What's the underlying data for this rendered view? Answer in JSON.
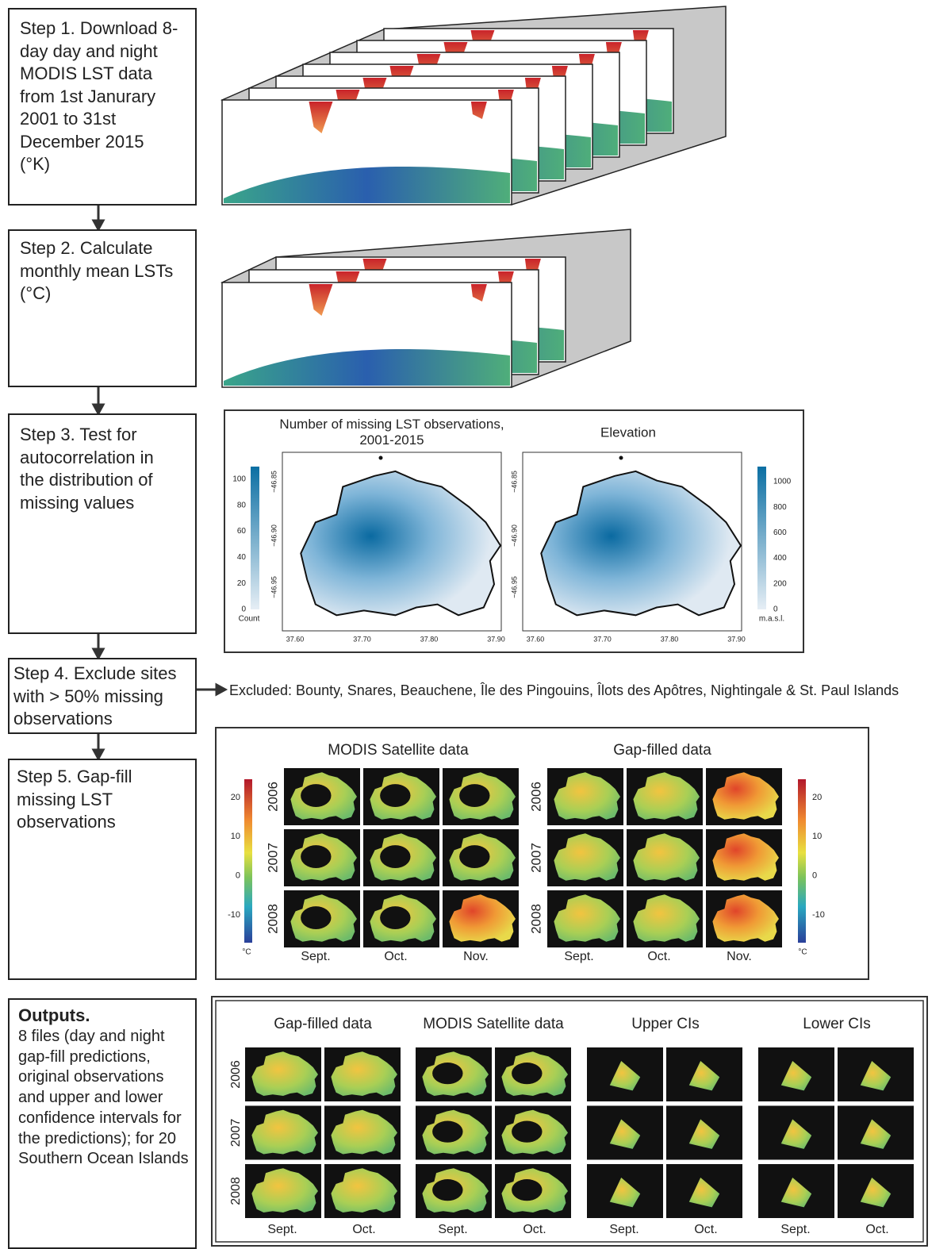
{
  "steps": [
    "Step 1. Download 8-day day and night MODIS LST data from 1st Janurary 2001 to 31st December 2015 (°K)",
    "Step 2. Calculate monthly mean LSTs (°C)",
    "Step 3. Test for autocorrelation in the distribution of missing values",
    "Step 4. Exclude sites with > 50% missing observations",
    "Step 5. Gap-fill missing LST observations"
  ],
  "step4_note": "Excluded: Bounty, Snares, Beauchene, Île des Pingouins, Îlots des Apôtres, Nightingale & St. Paul Islands",
  "outputs": {
    "title": "Outputs.",
    "text": "8 files (day and night gap-fill predictions, original observations and upper and lower confidence intervals for the predictions); for 20 Southern Ocean Islands"
  },
  "step3": {
    "titles": [
      "Number of missing LST observations, 2001-2015",
      "Elevation"
    ],
    "yticks": [
      "−46.85",
      "−46.90",
      "−46.95"
    ],
    "xticks": [
      "37.60",
      "37.70",
      "37.80",
      "37.90"
    ],
    "count_ticks": [
      100,
      80,
      60,
      40,
      20,
      0
    ],
    "count_label": "Count",
    "elev_ticks": [
      1000,
      800,
      600,
      400,
      200,
      0
    ],
    "elev_label": "m.a.s.l."
  },
  "step5": {
    "titles": [
      "MODIS Satellite data",
      "Gap-filled data"
    ],
    "years": [
      "2006",
      "2007",
      "2008"
    ],
    "months": [
      "Sept.",
      "Oct.",
      "Nov."
    ],
    "ticks": [
      20,
      10,
      0,
      -10
    ],
    "unit": "°C"
  },
  "outputs_panel": {
    "titles": [
      "Gap-filled data",
      "MODIS Satellite data",
      "Upper CIs",
      "Lower CIs"
    ],
    "years": [
      "2006",
      "2007",
      "2008"
    ],
    "months": [
      "Sept.",
      "Oct."
    ]
  }
}
